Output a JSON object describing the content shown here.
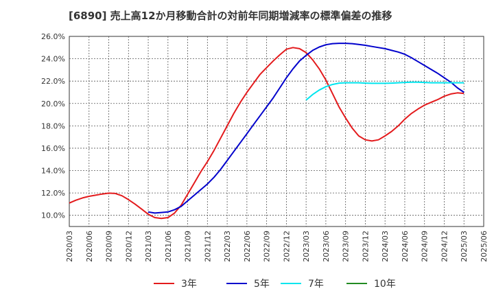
{
  "chart_data": {
    "type": "line",
    "title": "[6890]  売上高12か月移動合計の対前年同期増減率の標準偏差の推移",
    "xlabel": "",
    "ylabel": "",
    "ylim": [
      9.0,
      26.0
    ],
    "x_ticks": [
      "2020/03",
      "2020/06",
      "2020/09",
      "2020/12",
      "2021/03",
      "2021/06",
      "2021/09",
      "2021/12",
      "2022/03",
      "2022/06",
      "2022/09",
      "2022/12",
      "2023/03",
      "2023/06",
      "2023/09",
      "2023/12",
      "2024/03",
      "2024/06",
      "2024/09",
      "2024/12",
      "2025/03",
      "2025/06"
    ],
    "y_ticks": [
      "10.0%",
      "12.0%",
      "14.0%",
      "16.0%",
      "18.0%",
      "20.0%",
      "22.0%",
      "24.0%",
      "26.0%"
    ],
    "y_tick_values": [
      10,
      12,
      14,
      16,
      18,
      20,
      22,
      24,
      26
    ],
    "grid": true,
    "legend_position": "bottom",
    "series": [
      {
        "name": "3年",
        "color": "#e31a1c",
        "x": [
          "2020/03",
          "2020/04",
          "2020/05",
          "2020/06",
          "2020/07",
          "2020/08",
          "2020/09",
          "2020/10",
          "2020/11",
          "2020/12",
          "2021/01",
          "2021/02",
          "2021/03",
          "2021/04",
          "2021/05",
          "2021/06",
          "2021/07",
          "2021/08",
          "2021/09",
          "2021/10",
          "2021/11",
          "2021/12",
          "2022/01",
          "2022/02",
          "2022/03",
          "2022/04",
          "2022/05",
          "2022/06",
          "2022/07",
          "2022/08",
          "2022/09",
          "2022/10",
          "2022/11",
          "2022/12",
          "2023/01",
          "2023/02",
          "2023/03",
          "2023/04",
          "2023/05",
          "2023/06",
          "2023/07",
          "2023/08",
          "2023/09",
          "2023/10",
          "2023/11",
          "2023/12",
          "2024/01",
          "2024/02",
          "2024/03",
          "2024/04",
          "2024/05",
          "2024/06",
          "2024/07",
          "2024/08",
          "2024/09",
          "2024/10",
          "2024/11",
          "2024/12",
          "2025/01",
          "2025/02",
          "2025/03"
        ],
        "values": [
          11.1,
          11.35,
          11.55,
          11.7,
          11.8,
          11.9,
          11.98,
          11.95,
          11.75,
          11.4,
          11.0,
          10.55,
          10.1,
          9.8,
          9.72,
          9.8,
          10.2,
          10.9,
          11.9,
          12.9,
          13.9,
          14.8,
          15.8,
          16.9,
          18.0,
          19.1,
          20.1,
          21.0,
          21.8,
          22.6,
          23.2,
          23.8,
          24.35,
          24.85,
          25.0,
          24.9,
          24.55,
          23.9,
          23.1,
          22.1,
          20.9,
          19.7,
          18.7,
          17.8,
          17.1,
          16.75,
          16.65,
          16.75,
          17.1,
          17.5,
          18.0,
          18.6,
          19.1,
          19.5,
          19.85,
          20.1,
          20.35,
          20.65,
          20.85,
          20.95,
          20.9
        ]
      },
      {
        "name": "5年",
        "color": "#0000cc",
        "x": [
          "2021/03",
          "2021/04",
          "2021/05",
          "2021/06",
          "2021/07",
          "2021/08",
          "2021/09",
          "2021/10",
          "2021/11",
          "2021/12",
          "2022/01",
          "2022/02",
          "2022/03",
          "2022/04",
          "2022/05",
          "2022/06",
          "2022/07",
          "2022/08",
          "2022/09",
          "2022/10",
          "2022/11",
          "2022/12",
          "2023/01",
          "2023/02",
          "2023/03",
          "2023/04",
          "2023/05",
          "2023/06",
          "2023/07",
          "2023/08",
          "2023/09",
          "2023/10",
          "2023/11",
          "2023/12",
          "2024/01",
          "2024/02",
          "2024/03",
          "2024/04",
          "2024/05",
          "2024/06",
          "2024/07",
          "2024/08",
          "2024/09",
          "2024/10",
          "2024/11",
          "2024/12",
          "2025/01",
          "2025/02",
          "2025/03"
        ],
        "values": [
          10.3,
          10.2,
          10.25,
          10.3,
          10.5,
          10.8,
          11.3,
          11.8,
          12.3,
          12.8,
          13.4,
          14.1,
          14.9,
          15.7,
          16.5,
          17.3,
          18.1,
          18.9,
          19.7,
          20.5,
          21.4,
          22.3,
          23.1,
          23.8,
          24.3,
          24.75,
          25.05,
          25.25,
          25.35,
          25.38,
          25.38,
          25.35,
          25.28,
          25.2,
          25.1,
          25.0,
          24.9,
          24.75,
          24.6,
          24.4,
          24.1,
          23.75,
          23.4,
          23.05,
          22.7,
          22.3,
          21.9,
          21.4,
          21.0
        ]
      },
      {
        "name": "7年",
        "color": "#00e5ee",
        "x": [
          "2023/03",
          "2023/04",
          "2023/05",
          "2023/06",
          "2023/07",
          "2023/08",
          "2023/09",
          "2023/10",
          "2023/11",
          "2023/12",
          "2024/01",
          "2024/02",
          "2024/03",
          "2024/04",
          "2024/05",
          "2024/06",
          "2024/07",
          "2024/08",
          "2024/09",
          "2024/10",
          "2024/11",
          "2024/12",
          "2025/01",
          "2025/02",
          "2025/03"
        ],
        "values": [
          20.3,
          20.8,
          21.2,
          21.5,
          21.7,
          21.82,
          21.85,
          21.85,
          21.85,
          21.82,
          21.8,
          21.8,
          21.8,
          21.82,
          21.85,
          21.88,
          21.9,
          21.9,
          21.88,
          21.85,
          21.85,
          21.85,
          21.85,
          21.85,
          21.85
        ]
      },
      {
        "name": "10年",
        "color": "#228b22",
        "x": [],
        "values": []
      }
    ]
  }
}
